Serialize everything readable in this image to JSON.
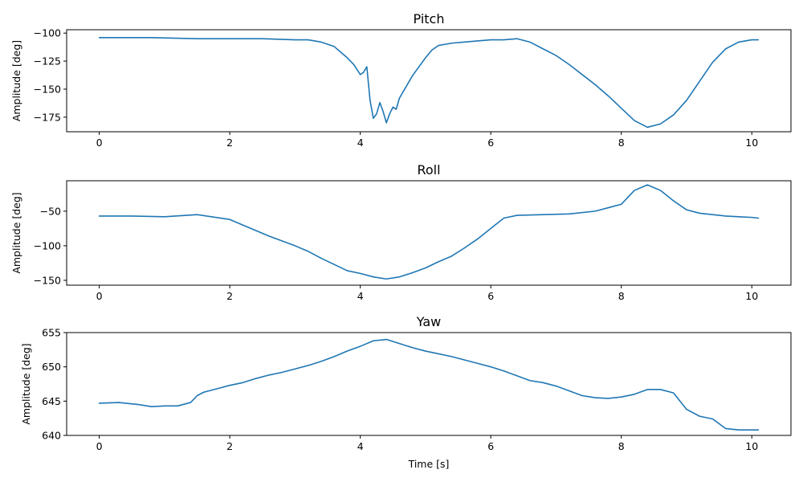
{
  "chart_data": [
    {
      "type": "line",
      "title": "Pitch",
      "xlabel": "",
      "ylabel": "Amplitude [deg]",
      "xlim": [
        -0.5,
        10.6
      ],
      "ylim": [
        -188,
        -97
      ],
      "xticks": [
        0,
        2,
        4,
        6,
        8,
        10
      ],
      "yticks": [
        -175,
        -150,
        -125,
        -100
      ],
      "grid": false,
      "legend": "none",
      "color": "#1f77b4",
      "series": [
        {
          "x": [
            0,
            0.3,
            0.8,
            1.5,
            2.0,
            2.5,
            3.0,
            3.2,
            3.4,
            3.5,
            3.6,
            3.7,
            3.8,
            3.9,
            4.0,
            4.05,
            4.1,
            4.15,
            4.2,
            4.25,
            4.3,
            4.35,
            4.4,
            4.45,
            4.5,
            4.55,
            4.6,
            4.7,
            4.8,
            4.9,
            5.0,
            5.1,
            5.2,
            5.4,
            5.6,
            5.8,
            6.0,
            6.2,
            6.4,
            6.6,
            6.8,
            7.0,
            7.2,
            7.4,
            7.6,
            7.8,
            8.0,
            8.2,
            8.4,
            8.6,
            8.8,
            9.0,
            9.2,
            9.4,
            9.6,
            9.8,
            10.0,
            10.1
          ],
          "y": [
            -104,
            -104,
            -104,
            -105,
            -105,
            -105,
            -106,
            -106,
            -108,
            -110,
            -112,
            -117,
            -122,
            -128,
            -137,
            -135,
            -130,
            -160,
            -176,
            -172,
            -162,
            -170,
            -180,
            -172,
            -166,
            -168,
            -158,
            -148,
            -138,
            -130,
            -122,
            -115,
            -111,
            -109,
            -108,
            -107,
            -106,
            -106,
            -105,
            -108,
            -114,
            -120,
            -128,
            -137,
            -146,
            -156,
            -167,
            -178,
            -184,
            -181,
            -173,
            -160,
            -143,
            -126,
            -114,
            -108,
            -106,
            -106
          ]
        }
      ]
    },
    {
      "type": "line",
      "title": "Roll",
      "xlabel": "",
      "ylabel": "Amplitude [deg]",
      "xlim": [
        -0.5,
        10.6
      ],
      "ylim": [
        -157,
        -6
      ],
      "xticks": [
        0,
        2,
        4,
        6,
        8,
        10
      ],
      "yticks": [
        -150,
        -100,
        -50
      ],
      "grid": false,
      "legend": "none",
      "color": "#1f77b4",
      "series": [
        {
          "x": [
            0,
            0.5,
            1.0,
            1.5,
            2.0,
            2.2,
            2.4,
            2.6,
            2.8,
            3.0,
            3.2,
            3.4,
            3.6,
            3.8,
            4.0,
            4.2,
            4.4,
            4.6,
            4.8,
            5.0,
            5.2,
            5.4,
            5.6,
            5.8,
            6.0,
            6.2,
            6.4,
            6.8,
            7.2,
            7.6,
            8.0,
            8.2,
            8.4,
            8.6,
            8.8,
            9.0,
            9.2,
            9.4,
            9.6,
            9.8,
            10.0,
            10.1
          ],
          "y": [
            -57,
            -57,
            -58,
            -55,
            -62,
            -70,
            -78,
            -86,
            -93,
            -100,
            -108,
            -118,
            -127,
            -136,
            -140,
            -145,
            -148,
            -145,
            -139,
            -132,
            -123,
            -115,
            -103,
            -90,
            -75,
            -60,
            -56,
            -55,
            -54,
            -50,
            -40,
            -20,
            -12,
            -20,
            -35,
            -48,
            -53,
            -55,
            -57,
            -58,
            -59,
            -60
          ]
        }
      ]
    },
    {
      "type": "line",
      "title": "Yaw",
      "xlabel": "Time [s]",
      "ylabel": "Amplitude [deg]",
      "xlim": [
        -0.5,
        10.6
      ],
      "ylim": [
        640,
        655
      ],
      "xticks": [
        0,
        2,
        4,
        6,
        8,
        10
      ],
      "yticks": [
        640,
        645,
        650,
        655
      ],
      "grid": false,
      "legend": "none",
      "color": "#1f77b4",
      "series": [
        {
          "x": [
            0,
            0.3,
            0.6,
            0.8,
            1.0,
            1.2,
            1.4,
            1.5,
            1.6,
            1.8,
            2.0,
            2.2,
            2.4,
            2.6,
            2.8,
            3.0,
            3.2,
            3.4,
            3.6,
            3.8,
            4.0,
            4.2,
            4.4,
            4.6,
            4.8,
            5.0,
            5.2,
            5.4,
            5.6,
            5.8,
            6.0,
            6.2,
            6.4,
            6.6,
            6.8,
            7.0,
            7.2,
            7.4,
            7.6,
            7.8,
            8.0,
            8.2,
            8.4,
            8.6,
            8.8,
            8.9,
            9.0,
            9.2,
            9.4,
            9.6,
            9.8,
            10.0,
            10.1
          ],
          "y": [
            644.7,
            644.8,
            644.5,
            644.2,
            644.3,
            644.3,
            644.8,
            645.8,
            646.3,
            646.8,
            647.3,
            647.7,
            648.3,
            648.8,
            649.2,
            649.7,
            650.2,
            650.8,
            651.5,
            652.3,
            653.0,
            653.8,
            654.0,
            653.4,
            652.8,
            652.3,
            651.9,
            651.5,
            651.0,
            650.5,
            650.0,
            649.4,
            648.7,
            648.0,
            647.7,
            647.2,
            646.5,
            645.8,
            645.5,
            645.4,
            645.6,
            646.0,
            646.7,
            646.7,
            646.2,
            645.0,
            643.8,
            642.8,
            642.4,
            641.0,
            640.8,
            640.8,
            640.8
          ]
        }
      ]
    }
  ]
}
